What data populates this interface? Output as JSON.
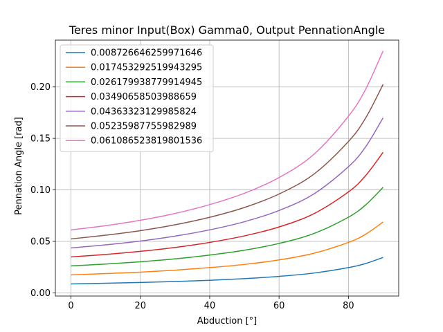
{
  "chart_data": {
    "type": "line",
    "title": "Teres minor Input(Box) Gamma0, Output PennationAngle",
    "xlabel": "Abduction [°]",
    "ylabel": "Pennation Angle [rad]",
    "xlim": [
      -4.5,
      94.5
    ],
    "ylim": [
      -0.0031,
      0.2455
    ],
    "xticks": [
      0,
      20,
      40,
      60,
      80
    ],
    "xtick_labels": [
      "0",
      "20",
      "40",
      "60",
      "80"
    ],
    "yticks": [
      0.0,
      0.05,
      0.1,
      0.15,
      0.2
    ],
    "ytick_labels": [
      "0.00",
      "0.05",
      "0.10",
      "0.15",
      "0.20"
    ],
    "grid": true,
    "legend_position": "top-left",
    "x": [
      0,
      10,
      20,
      30,
      40,
      50,
      60,
      70,
      80,
      85,
      90
    ],
    "series": [
      {
        "name": "0.008726646259971646",
        "color": "#1f77b4",
        "values": [
          0.0087,
          0.0093,
          0.0101,
          0.011,
          0.0122,
          0.0138,
          0.016,
          0.0192,
          0.0245,
          0.0285,
          0.0344
        ]
      },
      {
        "name": "0.017453292519943295",
        "color": "#ff7f0e",
        "values": [
          0.0175,
          0.0187,
          0.0201,
          0.022,
          0.0245,
          0.0276,
          0.032,
          0.0384,
          0.049,
          0.057,
          0.0688
        ]
      },
      {
        "name": "0.026179938779914945",
        "color": "#2ca02c",
        "values": [
          0.0262,
          0.028,
          0.0302,
          0.033,
          0.0367,
          0.0414,
          0.048,
          0.0576,
          0.0735,
          0.0855,
          0.1025
        ]
      },
      {
        "name": "0.03490658503988659",
        "color": "#d62728",
        "values": [
          0.0349,
          0.0373,
          0.0403,
          0.0441,
          0.049,
          0.0553,
          0.064,
          0.0768,
          0.098,
          0.114,
          0.1365
        ]
      },
      {
        "name": "0.04363323129985824",
        "color": "#9467bd",
        "values": [
          0.0436,
          0.0466,
          0.0503,
          0.0551,
          0.0612,
          0.0691,
          0.08,
          0.096,
          0.1225,
          0.142,
          0.17
        ]
      },
      {
        "name": "0.05235987755982989",
        "color": "#8c564b",
        "values": [
          0.0524,
          0.056,
          0.0604,
          0.0661,
          0.0734,
          0.0829,
          0.096,
          0.1152,
          0.147,
          0.17,
          0.2025
        ]
      },
      {
        "name": "0.061086523819801536",
        "color": "#e377c2",
        "values": [
          0.0611,
          0.0653,
          0.0705,
          0.0771,
          0.0857,
          0.0967,
          0.112,
          0.1344,
          0.1715,
          0.198,
          0.235
        ]
      }
    ]
  }
}
